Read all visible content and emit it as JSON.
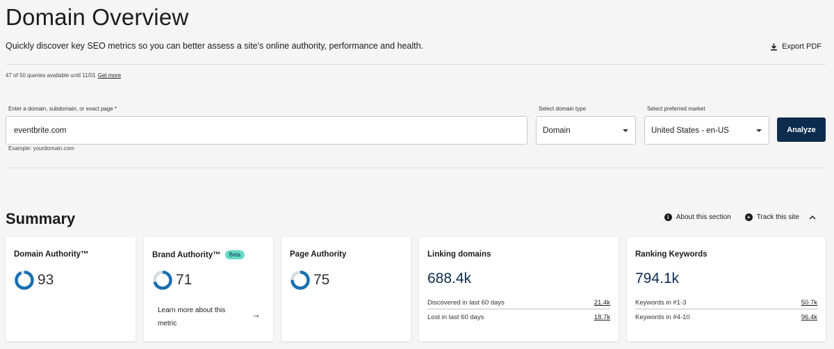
{
  "header": {
    "title": "Domain Overview",
    "subtitle": "Quickly discover key SEO metrics so you can better assess a site's online authority, performance and health.",
    "export_label": "Export PDF"
  },
  "queries": {
    "text": "47 of 50 queries available until 11/01",
    "link": "Get more"
  },
  "form": {
    "domain_label": "Enter a domain, subdomain, or exact page *",
    "domain_value": "eventbrite.com",
    "example": "Example: yourdomain.com",
    "type_label": "Select domain type",
    "type_value": "Domain",
    "market_label": "Select preferred market",
    "market_value": "United States - en-US",
    "analyze_label": "Analyze"
  },
  "summary": {
    "title": "Summary",
    "about_label": "About this section",
    "track_label": "Track this site",
    "accent_color": "#1a6fb0",
    "cards": {
      "domain_authority": {
        "title": "Domain Authority™",
        "score": "93",
        "fill": 0.93
      },
      "brand_authority": {
        "title": "Brand Authority™",
        "badge": "Beta",
        "score": "71",
        "fill": 0.71,
        "learn_more": "Learn more about this metric"
      },
      "page_authority": {
        "title": "Page Authority",
        "score": "75",
        "fill": 0.75
      },
      "linking_domains": {
        "title": "Linking domains",
        "value": "688.4k",
        "rows": [
          {
            "label": "Discovered in last 60 days",
            "value": "21.4k"
          },
          {
            "label": "Lost in last 60 days",
            "value": "18.7k"
          }
        ]
      },
      "ranking_keywords": {
        "title": "Ranking Keywords",
        "value": "794.1k",
        "rows": [
          {
            "label": "Keywords in #1-3",
            "value": "50.7k"
          },
          {
            "label": "Keywords in #4-10",
            "value": "96.4k"
          }
        ]
      }
    }
  }
}
